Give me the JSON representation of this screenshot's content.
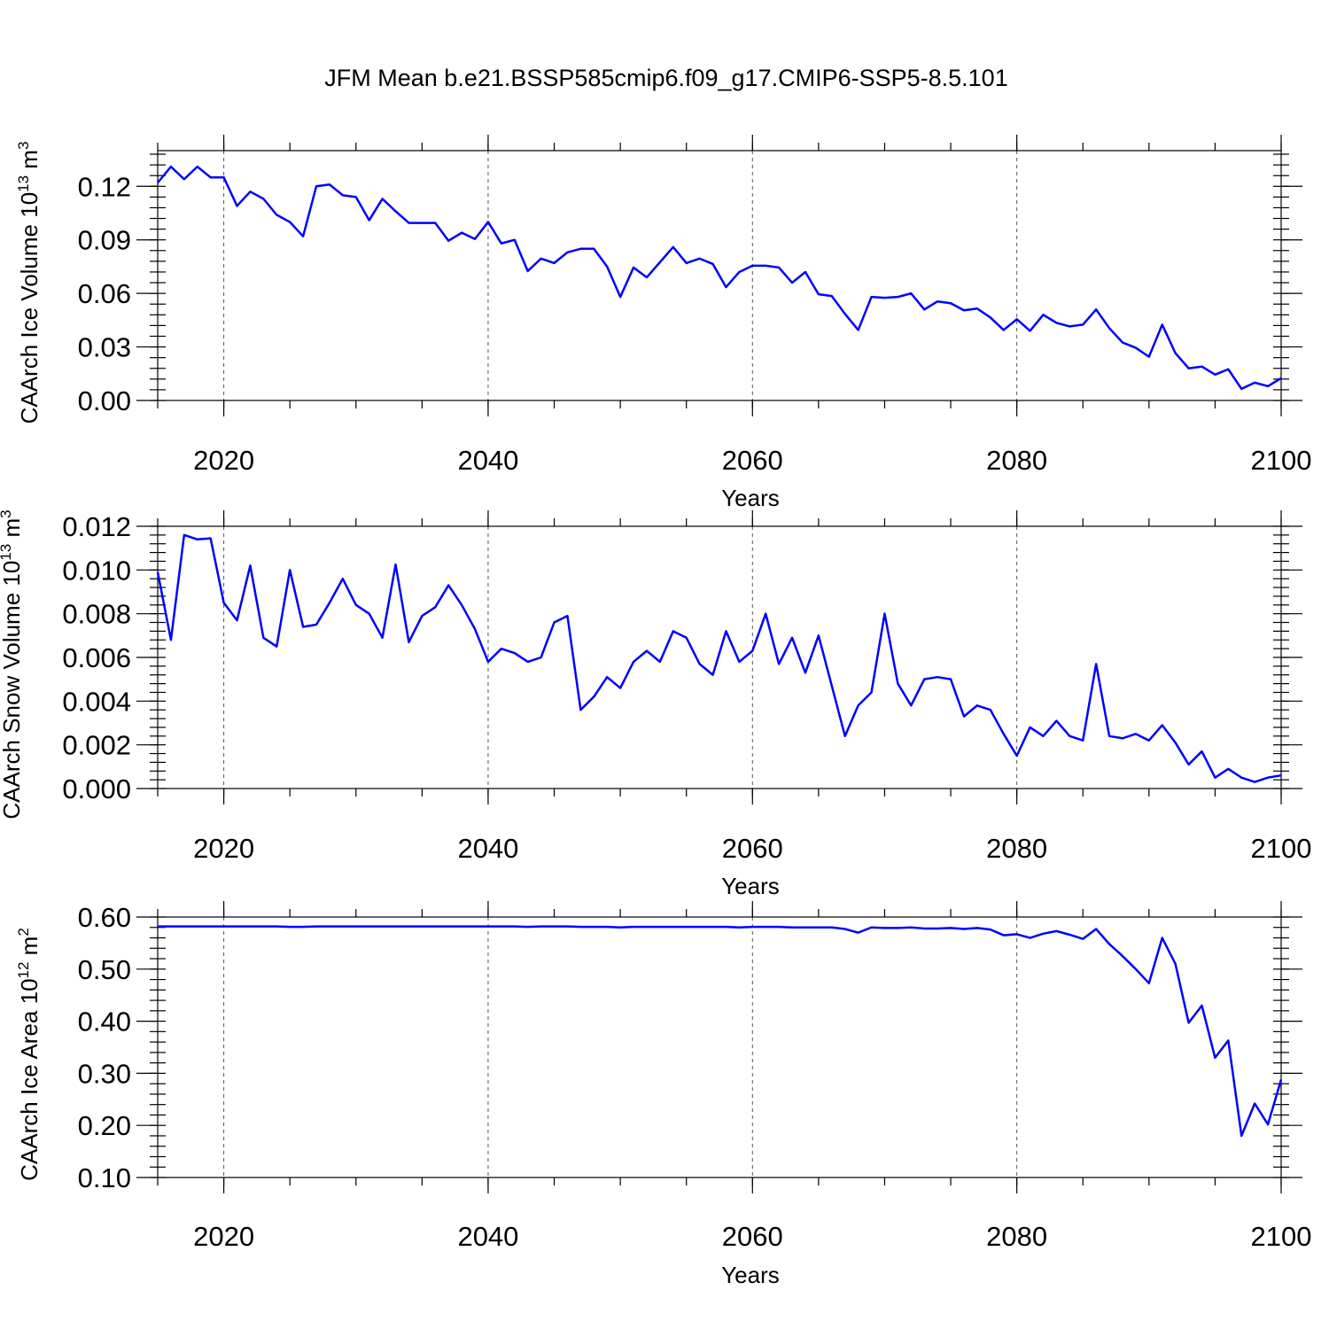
{
  "title": "JFM Mean b.e21.BSSP585cmip6.f09_g17.CMIP6-SSP5-8.5.101",
  "colors": {
    "series": "#0000ff",
    "axis": "#000000",
    "grid": "#555555"
  },
  "chart_data": [
    {
      "type": "line",
      "title": "",
      "xlabel": "Years",
      "ylabel": "CAArch Ice Volume 10",
      "ylabel_sup": "13",
      "ylabel_unit": " m",
      "ylabel_unit_sup": "3",
      "xlim": [
        2015,
        2100
      ],
      "ylim": [
        0,
        0.14
      ],
      "xticks": [
        2020,
        2040,
        2060,
        2080,
        2100
      ],
      "xtick_labels": [
        "2020",
        "2040",
        "2060",
        "2080",
        "2100"
      ],
      "yticks": [
        0,
        0.03,
        0.06,
        0.09,
        0.12
      ],
      "ytick_labels": [
        "0.00",
        "0.03",
        "0.06",
        "0.09",
        "0.12"
      ],
      "grid": "vertical dashed at major x ticks",
      "series": [
        {
          "x": [
            2015,
            2016,
            2017,
            2018,
            2019,
            2020,
            2021,
            2022,
            2023,
            2024,
            2025,
            2026,
            2027,
            2028,
            2029,
            2030,
            2031,
            2032,
            2033,
            2034,
            2035,
            2036,
            2037,
            2038,
            2039,
            2040,
            2041,
            2042,
            2043,
            2044,
            2045,
            2046,
            2047,
            2048,
            2049,
            2050,
            2051,
            2052,
            2053,
            2054,
            2055,
            2056,
            2057,
            2058,
            2059,
            2060,
            2061,
            2062,
            2063,
            2064,
            2065,
            2066,
            2067,
            2068,
            2069,
            2070,
            2071,
            2072,
            2073,
            2074,
            2075,
            2076,
            2077,
            2078,
            2079,
            2080,
            2081,
            2082,
            2083,
            2084,
            2085,
            2086,
            2087,
            2088,
            2089,
            2090,
            2091,
            2092,
            2093,
            2094,
            2095,
            2096,
            2097,
            2098,
            2099,
            2100
          ],
          "values": [
            0.122,
            0.131,
            0.124,
            0.131,
            0.125,
            0.125,
            0.109,
            0.117,
            0.113,
            0.104,
            0.1,
            0.092,
            0.12,
            0.121,
            0.115,
            0.114,
            0.101,
            0.113,
            0.106,
            0.0995,
            0.0995,
            0.0995,
            0.0895,
            0.094,
            0.0905,
            0.1,
            0.088,
            0.09,
            0.0725,
            0.0795,
            0.077,
            0.083,
            0.085,
            0.085,
            0.075,
            0.058,
            0.0745,
            0.069,
            0.0775,
            0.086,
            0.077,
            0.0795,
            0.0765,
            0.0635,
            0.072,
            0.0755,
            0.0755,
            0.0745,
            0.066,
            0.072,
            0.0595,
            0.0585,
            0.0485,
            0.0395,
            0.058,
            0.0575,
            0.058,
            0.06,
            0.051,
            0.0555,
            0.0545,
            0.0505,
            0.0515,
            0.0465,
            0.0395,
            0.0455,
            0.039,
            0.048,
            0.0435,
            0.0415,
            0.0425,
            0.051,
            0.0405,
            0.0325,
            0.0295,
            0.0245,
            0.0425,
            0.0265,
            0.018,
            0.019,
            0.0145,
            0.0175,
            0.0065,
            0.01,
            0.008,
            0.0125
          ]
        }
      ]
    },
    {
      "type": "line",
      "title": "",
      "xlabel": "Years",
      "ylabel": "CAArch Snow Volume 10",
      "ylabel_sup": "13",
      "ylabel_unit": " m",
      "ylabel_unit_sup": "3",
      "xlim": [
        2015,
        2100
      ],
      "ylim": [
        0,
        0.012
      ],
      "xticks": [
        2020,
        2040,
        2060,
        2080,
        2100
      ],
      "xtick_labels": [
        "2020",
        "2040",
        "2060",
        "2080",
        "2100"
      ],
      "yticks": [
        0,
        0.002,
        0.004,
        0.006,
        0.008,
        0.01,
        0.012
      ],
      "ytick_labels": [
        "0.000",
        "0.002",
        "0.004",
        "0.006",
        "0.008",
        "0.010",
        "0.012"
      ],
      "grid": "vertical dashed at major x ticks",
      "series": [
        {
          "x": [
            2015,
            2016,
            2017,
            2018,
            2019,
            2020,
            2021,
            2022,
            2023,
            2024,
            2025,
            2026,
            2027,
            2028,
            2029,
            2030,
            2031,
            2032,
            2033,
            2034,
            2035,
            2036,
            2037,
            2038,
            2039,
            2040,
            2041,
            2042,
            2043,
            2044,
            2045,
            2046,
            2047,
            2048,
            2049,
            2050,
            2051,
            2052,
            2053,
            2054,
            2055,
            2056,
            2057,
            2058,
            2059,
            2060,
            2061,
            2062,
            2063,
            2064,
            2065,
            2066,
            2067,
            2068,
            2069,
            2070,
            2071,
            2072,
            2073,
            2074,
            2075,
            2076,
            2077,
            2078,
            2079,
            2080,
            2081,
            2082,
            2083,
            2084,
            2085,
            2086,
            2087,
            2088,
            2089,
            2090,
            2091,
            2092,
            2093,
            2094,
            2095,
            2096,
            2097,
            2098,
            2099,
            2100
          ],
          "values": [
            0.0099,
            0.0068,
            0.0116,
            0.0114,
            0.01145,
            0.0085,
            0.0077,
            0.0102,
            0.0069,
            0.0065,
            0.01,
            0.0074,
            0.0075,
            0.0085,
            0.0096,
            0.0084,
            0.008,
            0.0069,
            0.01025,
            0.0067,
            0.0079,
            0.0083,
            0.0093,
            0.0084,
            0.0073,
            0.0058,
            0.0064,
            0.0062,
            0.0058,
            0.006,
            0.0076,
            0.0079,
            0.0036,
            0.0042,
            0.0051,
            0.0046,
            0.0058,
            0.0063,
            0.0058,
            0.0072,
            0.0069,
            0.0057,
            0.0052,
            0.0072,
            0.0058,
            0.0063,
            0.008,
            0.0057,
            0.0069,
            0.0053,
            0.007,
            0.0047,
            0.0024,
            0.0038,
            0.0044,
            0.008,
            0.0048,
            0.0038,
            0.005,
            0.0051,
            0.005,
            0.0033,
            0.0038,
            0.0036,
            0.0025,
            0.0015,
            0.0028,
            0.0024,
            0.0031,
            0.0024,
            0.0022,
            0.0057,
            0.0024,
            0.0023,
            0.0025,
            0.0022,
            0.0029,
            0.0021,
            0.0011,
            0.0017,
            0.0005,
            0.0009,
            0.0005,
            0.0003,
            0.0005,
            0.0006
          ]
        }
      ]
    },
    {
      "type": "line",
      "title": "",
      "xlabel": "Years",
      "ylabel": "CAArch Ice Area 10",
      "ylabel_sup": "12",
      "ylabel_unit": " m",
      "ylabel_unit_sup": "2",
      "xlim": [
        2015,
        2100
      ],
      "ylim": [
        0.1,
        0.6
      ],
      "xticks": [
        2020,
        2040,
        2060,
        2080,
        2100
      ],
      "xtick_labels": [
        "2020",
        "2040",
        "2060",
        "2080",
        "2100"
      ],
      "yticks": [
        0.1,
        0.2,
        0.3,
        0.4,
        0.5,
        0.6
      ],
      "ytick_labels": [
        "0.10",
        "0.20",
        "0.30",
        "0.40",
        "0.50",
        "0.60"
      ],
      "grid": "vertical dashed at major x ticks",
      "series": [
        {
          "x": [
            2015,
            2016,
            2017,
            2018,
            2019,
            2020,
            2021,
            2022,
            2023,
            2024,
            2025,
            2026,
            2027,
            2028,
            2029,
            2030,
            2031,
            2032,
            2033,
            2034,
            2035,
            2036,
            2037,
            2038,
            2039,
            2040,
            2041,
            2042,
            2043,
            2044,
            2045,
            2046,
            2047,
            2048,
            2049,
            2050,
            2051,
            2052,
            2053,
            2054,
            2055,
            2056,
            2057,
            2058,
            2059,
            2060,
            2061,
            2062,
            2063,
            2064,
            2065,
            2066,
            2067,
            2068,
            2069,
            2070,
            2071,
            2072,
            2073,
            2074,
            2075,
            2076,
            2077,
            2078,
            2079,
            2080,
            2081,
            2082,
            2083,
            2084,
            2085,
            2086,
            2087,
            2088,
            2089,
            2090,
            2091,
            2092,
            2093,
            2094,
            2095,
            2096,
            2097,
            2098,
            2099,
            2100
          ],
          "values": [
            0.582,
            0.582,
            0.582,
            0.582,
            0.582,
            0.582,
            0.582,
            0.582,
            0.582,
            0.582,
            0.581,
            0.581,
            0.582,
            0.582,
            0.582,
            0.582,
            0.582,
            0.582,
            0.582,
            0.582,
            0.582,
            0.582,
            0.582,
            0.582,
            0.582,
            0.582,
            0.582,
            0.582,
            0.581,
            0.582,
            0.582,
            0.582,
            0.581,
            0.581,
            0.581,
            0.58,
            0.581,
            0.581,
            0.581,
            0.581,
            0.581,
            0.581,
            0.581,
            0.581,
            0.58,
            0.581,
            0.581,
            0.581,
            0.58,
            0.58,
            0.58,
            0.58,
            0.577,
            0.57,
            0.58,
            0.579,
            0.579,
            0.58,
            0.578,
            0.578,
            0.579,
            0.577,
            0.579,
            0.576,
            0.565,
            0.567,
            0.56,
            0.568,
            0.573,
            0.566,
            0.558,
            0.577,
            0.548,
            0.525,
            0.5,
            0.473,
            0.56,
            0.51,
            0.397,
            0.43,
            0.33,
            0.363,
            0.18,
            0.242,
            0.202,
            0.288
          ]
        }
      ]
    }
  ]
}
